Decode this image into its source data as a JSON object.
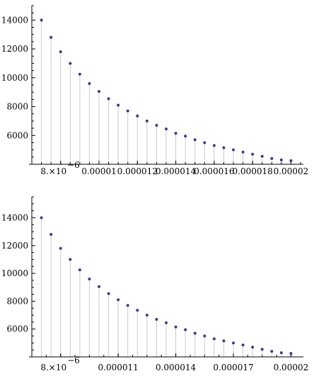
{
  "chart_data": [
    {
      "type": "scatter",
      "style": "stem",
      "x": [
        7e-06,
        7.5e-06,
        8e-06,
        8.5e-06,
        9e-06,
        9.5e-06,
        1e-05,
        1.05e-05,
        1.1e-05,
        1.15e-05,
        1.2e-05,
        1.25e-05,
        1.3e-05,
        1.35e-05,
        1.4e-05,
        1.45e-05,
        1.5e-05,
        1.55e-05,
        1.6e-05,
        1.65e-05,
        1.7e-05,
        1.75e-05,
        1.8e-05,
        1.85e-05,
        1.9e-05,
        1.95e-05,
        2e-05
      ],
      "y": [
        14000,
        12800,
        11800,
        11000,
        10250,
        9600,
        9050,
        8550,
        8100,
        7700,
        7350,
        7000,
        6700,
        6450,
        6150,
        5950,
        5700,
        5500,
        5300,
        5150,
        5000,
        4850,
        4700,
        4550,
        4400,
        4300,
        4250
      ],
      "xlim": [
        6.5e-06,
        2.05e-05
      ],
      "ylim": [
        4000,
        15000
      ],
      "y_ticks": [
        6000,
        8000,
        10000,
        12000,
        14000
      ],
      "y_tick_labels": [
        "6000",
        "8000",
        "10000",
        "12000",
        "14000"
      ],
      "x_ticks": [
        8e-06,
        1e-05,
        1.2e-05,
        1.4e-05,
        1.6e-05,
        1.8e-05,
        2e-05
      ],
      "x_tick_labels": [
        "8.×10",
        "0.00001",
        "0.000012",
        "0.000014",
        "0.000016",
        "0.000018",
        "0.00002"
      ],
      "x_tick_exponent": "−6",
      "point_color": "#3a3a8a",
      "stem_color": "#c9c9d6",
      "grid": false
    },
    {
      "type": "scatter",
      "style": "stem",
      "x": [
        7e-06,
        7.5e-06,
        8e-06,
        8.5e-06,
        9e-06,
        9.5e-06,
        1e-05,
        1.05e-05,
        1.1e-05,
        1.15e-05,
        1.2e-05,
        1.25e-05,
        1.3e-05,
        1.35e-05,
        1.4e-05,
        1.45e-05,
        1.5e-05,
        1.55e-05,
        1.6e-05,
        1.65e-05,
        1.7e-05,
        1.75e-05,
        1.8e-05,
        1.85e-05,
        1.9e-05,
        1.95e-05,
        2e-05
      ],
      "y": [
        14000,
        12800,
        11800,
        11000,
        10250,
        9600,
        9050,
        8550,
        8100,
        7700,
        7350,
        7000,
        6700,
        6450,
        6150,
        5950,
        5700,
        5500,
        5300,
        5150,
        5000,
        4850,
        4700,
        4550,
        4400,
        4300,
        4250
      ],
      "xlim": [
        6.5e-06,
        2.05e-05
      ],
      "ylim": [
        4000,
        15500
      ],
      "y_ticks": [
        6000,
        8000,
        10000,
        12000,
        14000
      ],
      "y_tick_labels": [
        "6000",
        "8000",
        "10000",
        "12000",
        "14000"
      ],
      "x_ticks": [
        8e-06,
        1.1e-05,
        1.4e-05,
        1.7e-05,
        2e-05
      ],
      "x_tick_labels": [
        "8.×10",
        "0.000011",
        "0.000014",
        "0.000017",
        "0.00002"
      ],
      "x_tick_exponent": "−6",
      "point_color": "#3a3a8a",
      "stem_color": "#c9c9d6",
      "grid": false
    }
  ]
}
